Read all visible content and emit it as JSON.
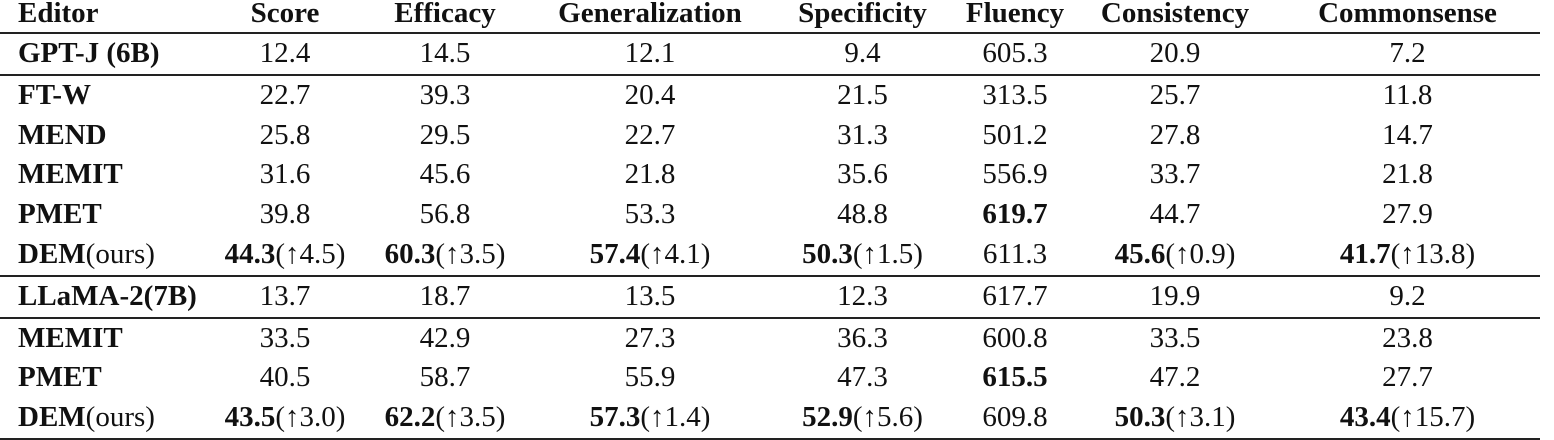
{
  "table": {
    "headers": [
      "Editor",
      "Score",
      "Efficacy",
      "Generalization",
      "Specificity",
      "Fluency",
      "Consistency",
      "Commonsense"
    ],
    "groups": [
      {
        "base": {
          "editor": "GPT-J (6B)",
          "cells": [
            "12.4",
            "14.5",
            "12.1",
            "9.4",
            "605.3",
            "20.9",
            "7.2"
          ]
        },
        "rows": [
          {
            "editor": "FT-W",
            "cells": [
              {
                "v": "22.7",
                "bold": false,
                "delta": ""
              },
              {
                "v": "39.3",
                "bold": false,
                "delta": ""
              },
              {
                "v": "20.4",
                "bold": false,
                "delta": ""
              },
              {
                "v": "21.5",
                "bold": false,
                "delta": ""
              },
              {
                "v": "313.5",
                "bold": false,
                "delta": ""
              },
              {
                "v": "25.7",
                "bold": false,
                "delta": ""
              },
              {
                "v": "11.8",
                "bold": false,
                "delta": ""
              }
            ]
          },
          {
            "editor": "MEND",
            "cells": [
              {
                "v": "25.8",
                "bold": false,
                "delta": ""
              },
              {
                "v": "29.5",
                "bold": false,
                "delta": ""
              },
              {
                "v": "22.7",
                "bold": false,
                "delta": ""
              },
              {
                "v": "31.3",
                "bold": false,
                "delta": ""
              },
              {
                "v": "501.2",
                "bold": false,
                "delta": ""
              },
              {
                "v": "27.8",
                "bold": false,
                "delta": ""
              },
              {
                "v": "14.7",
                "bold": false,
                "delta": ""
              }
            ]
          },
          {
            "editor": "MEMIT",
            "cells": [
              {
                "v": "31.6",
                "bold": false,
                "delta": ""
              },
              {
                "v": "45.6",
                "bold": false,
                "delta": ""
              },
              {
                "v": "21.8",
                "bold": false,
                "delta": ""
              },
              {
                "v": "35.6",
                "bold": false,
                "delta": ""
              },
              {
                "v": "556.9",
                "bold": false,
                "delta": ""
              },
              {
                "v": "33.7",
                "bold": false,
                "delta": ""
              },
              {
                "v": "21.8",
                "bold": false,
                "delta": ""
              }
            ]
          },
          {
            "editor": "PMET",
            "cells": [
              {
                "v": "39.8",
                "bold": false,
                "delta": ""
              },
              {
                "v": "56.8",
                "bold": false,
                "delta": ""
              },
              {
                "v": "53.3",
                "bold": false,
                "delta": ""
              },
              {
                "v": "48.8",
                "bold": false,
                "delta": ""
              },
              {
                "v": "619.7",
                "bold": true,
                "delta": ""
              },
              {
                "v": "44.7",
                "bold": false,
                "delta": ""
              },
              {
                "v": "27.9",
                "bold": false,
                "delta": ""
              }
            ]
          },
          {
            "editor": "DEM",
            "editor_suffix": "(ours)",
            "cells": [
              {
                "v": "44.3",
                "bold": true,
                "delta": "(↑4.5)"
              },
              {
                "v": "60.3",
                "bold": true,
                "delta": "(↑3.5)"
              },
              {
                "v": "57.4",
                "bold": true,
                "delta": "(↑4.1)"
              },
              {
                "v": "50.3",
                "bold": true,
                "delta": "(↑1.5)"
              },
              {
                "v": "611.3",
                "bold": false,
                "delta": ""
              },
              {
                "v": "45.6",
                "bold": true,
                "delta": "(↑0.9)"
              },
              {
                "v": "41.7",
                "bold": true,
                "delta": "(↑13.8)"
              }
            ]
          }
        ]
      },
      {
        "base": {
          "editor": "LLaMA-2(7B)",
          "cells": [
            "13.7",
            "18.7",
            "13.5",
            "12.3",
            "617.7",
            "19.9",
            "9.2"
          ]
        },
        "rows": [
          {
            "editor": "MEMIT",
            "cells": [
              {
                "v": "33.5",
                "bold": false,
                "delta": ""
              },
              {
                "v": "42.9",
                "bold": false,
                "delta": ""
              },
              {
                "v": "27.3",
                "bold": false,
                "delta": ""
              },
              {
                "v": "36.3",
                "bold": false,
                "delta": ""
              },
              {
                "v": "600.8",
                "bold": false,
                "delta": ""
              },
              {
                "v": "33.5",
                "bold": false,
                "delta": ""
              },
              {
                "v": "23.8",
                "bold": false,
                "delta": ""
              }
            ]
          },
          {
            "editor": "PMET",
            "cells": [
              {
                "v": "40.5",
                "bold": false,
                "delta": ""
              },
              {
                "v": "58.7",
                "bold": false,
                "delta": ""
              },
              {
                "v": "55.9",
                "bold": false,
                "delta": ""
              },
              {
                "v": "47.3",
                "bold": false,
                "delta": ""
              },
              {
                "v": "615.5",
                "bold": true,
                "delta": ""
              },
              {
                "v": "47.2",
                "bold": false,
                "delta": ""
              },
              {
                "v": "27.7",
                "bold": false,
                "delta": ""
              }
            ]
          },
          {
            "editor": "DEM",
            "editor_suffix": "(ours)",
            "cells": [
              {
                "v": "43.5",
                "bold": true,
                "delta": "(↑3.0)"
              },
              {
                "v": "62.2",
                "bold": true,
                "delta": "(↑3.5)"
              },
              {
                "v": "57.3",
                "bold": true,
                "delta": "(↑1.4)"
              },
              {
                "v": "52.9",
                "bold": true,
                "delta": "(↑5.6)"
              },
              {
                "v": "609.8",
                "bold": false,
                "delta": ""
              },
              {
                "v": "50.3",
                "bold": true,
                "delta": "(↑3.1)"
              },
              {
                "v": "43.4",
                "bold": true,
                "delta": "(↑15.7)"
              }
            ]
          }
        ]
      }
    ]
  }
}
